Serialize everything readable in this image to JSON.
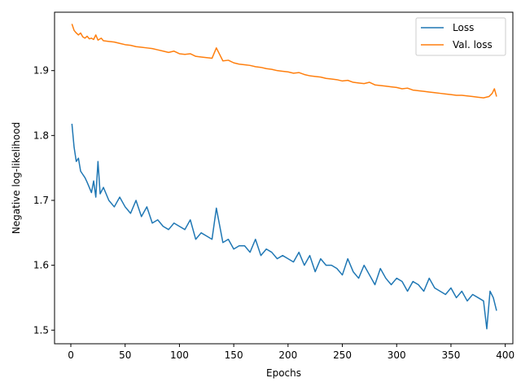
{
  "chart_data": {
    "type": "line",
    "xlabel": "Epochs",
    "ylabel": "Negative log-likelihood",
    "xlim": [
      -15,
      407
    ],
    "ylim": [
      1.479,
      1.99
    ],
    "xticks": [
      0,
      50,
      100,
      150,
      200,
      250,
      300,
      350,
      400
    ],
    "xtick_labels": [
      "0",
      "50",
      "100",
      "150",
      "200",
      "250",
      "300",
      "350",
      "400"
    ],
    "yticks": [
      1.5,
      1.6,
      1.7,
      1.8,
      1.9
    ],
    "ytick_labels": [
      "1.5",
      "1.6",
      "1.7",
      "1.8",
      "1.9"
    ],
    "grid": false,
    "legend_position": "top-right",
    "series": [
      {
        "name": "Loss",
        "color": "#1f77b4",
        "x": [
          1,
          3,
          5,
          7,
          9,
          11,
          13,
          15,
          17,
          19,
          21,
          23,
          25,
          27,
          30,
          35,
          40,
          45,
          50,
          55,
          60,
          65,
          70,
          75,
          80,
          85,
          90,
          95,
          100,
          105,
          110,
          115,
          120,
          125,
          130,
          134,
          140,
          145,
          150,
          155,
          160,
          165,
          170,
          175,
          180,
          185,
          190,
          195,
          200,
          205,
          210,
          215,
          220,
          225,
          230,
          235,
          240,
          245,
          250,
          255,
          260,
          265,
          270,
          275,
          280,
          285,
          290,
          295,
          300,
          305,
          310,
          315,
          320,
          325,
          330,
          335,
          340,
          345,
          350,
          355,
          360,
          365,
          370,
          375,
          380,
          383,
          386,
          389,
          392
        ],
        "y": [
          1.818,
          1.782,
          1.76,
          1.765,
          1.745,
          1.74,
          1.735,
          1.728,
          1.72,
          1.712,
          1.73,
          1.705,
          1.76,
          1.71,
          1.72,
          1.7,
          1.69,
          1.705,
          1.69,
          1.68,
          1.7,
          1.675,
          1.69,
          1.665,
          1.67,
          1.66,
          1.655,
          1.665,
          1.66,
          1.655,
          1.67,
          1.64,
          1.65,
          1.645,
          1.64,
          1.688,
          1.635,
          1.64,
          1.625,
          1.63,
          1.63,
          1.62,
          1.64,
          1.615,
          1.625,
          1.62,
          1.61,
          1.615,
          1.61,
          1.605,
          1.62,
          1.6,
          1.615,
          1.59,
          1.61,
          1.6,
          1.6,
          1.595,
          1.585,
          1.61,
          1.59,
          1.58,
          1.6,
          1.585,
          1.57,
          1.595,
          1.58,
          1.57,
          1.58,
          1.575,
          1.56,
          1.575,
          1.57,
          1.56,
          1.58,
          1.565,
          1.56,
          1.555,
          1.565,
          1.55,
          1.56,
          1.545,
          1.555,
          1.55,
          1.545,
          1.502,
          1.56,
          1.55,
          1.53
        ]
      },
      {
        "name": "Val. loss",
        "color": "#ff7f0e",
        "x": [
          1,
          3,
          5,
          7,
          9,
          11,
          13,
          15,
          17,
          19,
          21,
          23,
          25,
          28,
          30,
          35,
          40,
          45,
          50,
          55,
          60,
          65,
          70,
          75,
          80,
          85,
          90,
          95,
          100,
          105,
          110,
          115,
          120,
          125,
          130,
          134,
          140,
          145,
          150,
          155,
          160,
          165,
          170,
          175,
          180,
          185,
          190,
          195,
          200,
          205,
          210,
          215,
          220,
          225,
          230,
          235,
          240,
          245,
          250,
          255,
          260,
          265,
          270,
          275,
          280,
          285,
          290,
          295,
          300,
          305,
          310,
          315,
          320,
          325,
          330,
          335,
          340,
          345,
          350,
          355,
          360,
          365,
          370,
          375,
          380,
          385,
          388,
          390,
          392
        ],
        "y": [
          1.972,
          1.962,
          1.958,
          1.955,
          1.958,
          1.952,
          1.95,
          1.953,
          1.949,
          1.95,
          1.948,
          1.955,
          1.947,
          1.95,
          1.946,
          1.945,
          1.944,
          1.942,
          1.94,
          1.939,
          1.937,
          1.936,
          1.935,
          1.934,
          1.932,
          1.93,
          1.928,
          1.93,
          1.926,
          1.925,
          1.926,
          1.922,
          1.921,
          1.92,
          1.919,
          1.935,
          1.915,
          1.916,
          1.912,
          1.91,
          1.909,
          1.908,
          1.906,
          1.905,
          1.903,
          1.902,
          1.9,
          1.899,
          1.898,
          1.896,
          1.897,
          1.894,
          1.892,
          1.891,
          1.89,
          1.888,
          1.887,
          1.886,
          1.884,
          1.885,
          1.882,
          1.881,
          1.88,
          1.882,
          1.878,
          1.877,
          1.876,
          1.875,
          1.874,
          1.872,
          1.873,
          1.87,
          1.869,
          1.868,
          1.867,
          1.866,
          1.865,
          1.864,
          1.863,
          1.862,
          1.862,
          1.861,
          1.86,
          1.859,
          1.858,
          1.86,
          1.865,
          1.872,
          1.86
        ]
      }
    ]
  }
}
